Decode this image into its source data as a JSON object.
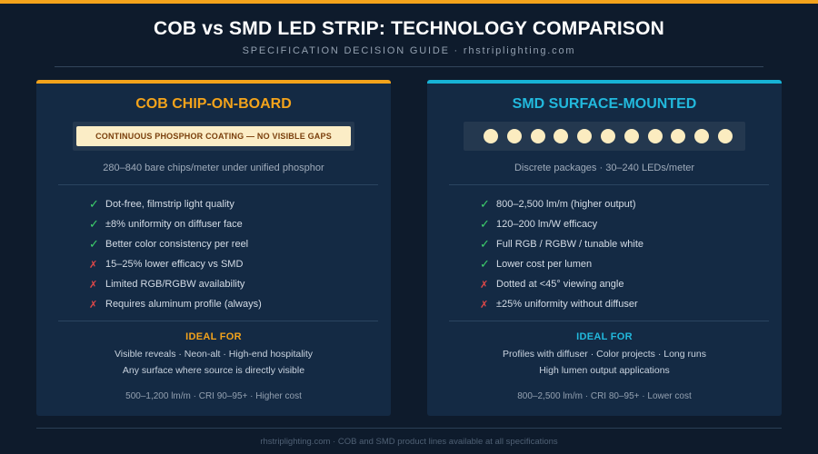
{
  "header": {
    "title": "COB vs SMD LED STRIP: TECHNOLOGY COMPARISON",
    "subtitle": "SPECIFICATION DECISION GUIDE · rhstriplighting.com"
  },
  "colors": {
    "cob_accent": "#f3a31b",
    "smd_accent": "#17b3d6",
    "check": "#3fd16c",
    "cross": "#e04848",
    "background": "#0e1b2c",
    "panel": "#142a44"
  },
  "panels": {
    "cob": {
      "title": "COB CHIP-ON-BOARD",
      "strip_label": "CONTINUOUS PHOSPHOR COATING — NO VISIBLE GAPS",
      "caption": "280–840 bare chips/meter under unified phosphor",
      "features": [
        {
          "icon": "check-icon",
          "mark": "✓",
          "text": "Dot-free, filmstrip light quality"
        },
        {
          "icon": "check-icon",
          "mark": "✓",
          "text": "±8% uniformity on diffuser face"
        },
        {
          "icon": "check-icon",
          "mark": "✓",
          "text": "Better color consistency per reel"
        },
        {
          "icon": "cross-icon",
          "mark": "✗",
          "text": "15–25% lower efficacy vs SMD"
        },
        {
          "icon": "cross-icon",
          "mark": "✗",
          "text": "Limited RGB/RGBW availability"
        },
        {
          "icon": "cross-icon",
          "mark": "✗",
          "text": "Requires aluminum profile (always)"
        }
      ],
      "ideal_title": "IDEAL FOR",
      "ideal_line1": "Visible reveals · Neon-alt · High-end hospitality",
      "ideal_line2": "Any surface where source is directly visible",
      "specs": "500–1,200 lm/m · CRI 90–95+ · Higher cost"
    },
    "smd": {
      "title": "SMD SURFACE-MOUNTED",
      "led_count": 11,
      "caption": "Discrete packages · 30–240 LEDs/meter",
      "features": [
        {
          "icon": "check-icon",
          "mark": "✓",
          "text": "800–2,500 lm/m (higher output)"
        },
        {
          "icon": "check-icon",
          "mark": "✓",
          "text": "120–200 lm/W efficacy"
        },
        {
          "icon": "check-icon",
          "mark": "✓",
          "text": "Full RGB / RGBW / tunable white"
        },
        {
          "icon": "check-icon",
          "mark": "✓",
          "text": "Lower cost per lumen"
        },
        {
          "icon": "cross-icon",
          "mark": "✗",
          "text": "Dotted at <45° viewing angle"
        },
        {
          "icon": "cross-icon",
          "mark": "✗",
          "text": "±25% uniformity without diffuser"
        }
      ],
      "ideal_title": "IDEAL FOR",
      "ideal_line1": "Profiles with diffuser · Color projects · Long runs",
      "ideal_line2": "High lumen output applications",
      "specs": "800–2,500 lm/m · CRI 80–95+ · Lower cost"
    }
  },
  "footer": "rhstriplighting.com · COB and SMD product lines available at all specifications"
}
